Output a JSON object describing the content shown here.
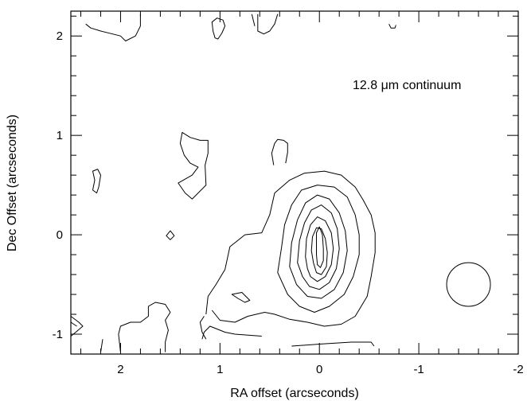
{
  "chart_data": {
    "type": "contour",
    "title": "",
    "xlabel": "RA offset (arcseconds)",
    "ylabel": "Dec Offset (arcseconds)",
    "xlim": [
      2.5,
      -2.0
    ],
    "ylim": [
      -1.2,
      2.25
    ],
    "x_reversed": true,
    "grid": false,
    "annotation": "12.8 μm continuum",
    "x_ticks": [
      2,
      1,
      0,
      -1,
      -2
    ],
    "x_tick_labels": [
      "2",
      "1",
      "0",
      "-1",
      "-2"
    ],
    "y_ticks": [
      -1,
      0,
      1,
      2
    ],
    "y_tick_labels": [
      "-1",
      "0",
      "1",
      "2"
    ],
    "x_minor_step": 0.2,
    "y_minor_step": 0.2,
    "beam": {
      "x": -1.5,
      "y": -0.5,
      "radius": 0.22
    },
    "contours": [
      {
        "name": "main-outer",
        "closed": false,
        "points": [
          [
            0.58,
            -1.02
          ],
          [
            0.85,
            -1.0
          ],
          [
            0.95,
            -0.98
          ],
          [
            1.1,
            -0.92
          ],
          [
            1.16,
            -0.98
          ],
          [
            1.18,
            -1.05
          ]
        ]
      },
      {
        "name": "main-outer",
        "closed": false,
        "points": [
          [
            1.14,
            -0.8
          ],
          [
            1.12,
            -0.62
          ],
          [
            1.04,
            -0.5
          ],
          [
            0.95,
            -0.35
          ],
          [
            0.9,
            -0.12
          ],
          [
            0.75,
            0.0
          ],
          [
            0.58,
            0.02
          ],
          [
            0.5,
            0.2
          ],
          [
            0.45,
            0.42
          ],
          [
            0.3,
            0.55
          ],
          [
            0.15,
            0.62
          ],
          [
            -0.05,
            0.64
          ],
          [
            -0.22,
            0.6
          ],
          [
            -0.36,
            0.48
          ],
          [
            -0.44,
            0.35
          ],
          [
            -0.52,
            0.2
          ],
          [
            -0.56,
            0.02
          ],
          [
            -0.56,
            -0.18
          ],
          [
            -0.52,
            -0.42
          ],
          [
            -0.48,
            -0.62
          ],
          [
            -0.36,
            -0.82
          ],
          [
            -0.22,
            -0.9
          ],
          [
            -0.05,
            -0.92
          ],
          [
            0.12,
            -0.88
          ],
          [
            0.3,
            -0.85
          ],
          [
            0.45,
            -0.8
          ],
          [
            0.55,
            -0.78
          ],
          [
            0.72,
            -0.82
          ],
          [
            0.85,
            -0.88
          ],
          [
            1.0,
            -0.86
          ],
          [
            1.08,
            -0.76
          ]
        ]
      },
      {
        "name": "contour-2",
        "closed": true,
        "points": [
          [
            0.42,
            -0.38
          ],
          [
            0.38,
            -0.12
          ],
          [
            0.35,
            0.1
          ],
          [
            0.28,
            0.3
          ],
          [
            0.18,
            0.45
          ],
          [
            0.02,
            0.5
          ],
          [
            -0.15,
            0.48
          ],
          [
            -0.28,
            0.38
          ],
          [
            -0.36,
            0.2
          ],
          [
            -0.4,
            0.0
          ],
          [
            -0.4,
            -0.2
          ],
          [
            -0.34,
            -0.42
          ],
          [
            -0.25,
            -0.6
          ],
          [
            -0.1,
            -0.72
          ],
          [
            0.05,
            -0.78
          ],
          [
            0.2,
            -0.72
          ],
          [
            0.32,
            -0.6
          ]
        ]
      },
      {
        "name": "contour-3",
        "closed": true,
        "points": [
          [
            0.3,
            -0.32
          ],
          [
            0.28,
            -0.08
          ],
          [
            0.22,
            0.15
          ],
          [
            0.14,
            0.32
          ],
          [
            0.02,
            0.4
          ],
          [
            -0.1,
            0.36
          ],
          [
            -0.2,
            0.22
          ],
          [
            -0.26,
            0.04
          ],
          [
            -0.28,
            -0.16
          ],
          [
            -0.24,
            -0.38
          ],
          [
            -0.15,
            -0.55
          ],
          [
            -0.02,
            -0.64
          ],
          [
            0.12,
            -0.62
          ],
          [
            0.23,
            -0.5
          ]
        ]
      },
      {
        "name": "contour-4",
        "closed": true,
        "points": [
          [
            0.22,
            -0.28
          ],
          [
            0.2,
            -0.06
          ],
          [
            0.15,
            0.12
          ],
          [
            0.08,
            0.25
          ],
          [
            -0.02,
            0.3
          ],
          [
            -0.12,
            0.22
          ],
          [
            -0.18,
            0.06
          ],
          [
            -0.2,
            -0.14
          ],
          [
            -0.17,
            -0.34
          ],
          [
            -0.1,
            -0.48
          ],
          [
            0.0,
            -0.55
          ],
          [
            0.1,
            -0.52
          ],
          [
            0.17,
            -0.42
          ]
        ]
      },
      {
        "name": "contour-5",
        "closed": true,
        "points": [
          [
            0.14,
            -0.22
          ],
          [
            0.13,
            -0.04
          ],
          [
            0.09,
            0.1
          ],
          [
            0.02,
            0.18
          ],
          [
            -0.06,
            0.14
          ],
          [
            -0.12,
            0.02
          ],
          [
            -0.14,
            -0.14
          ],
          [
            -0.12,
            -0.3
          ],
          [
            -0.06,
            -0.42
          ],
          [
            0.02,
            -0.47
          ],
          [
            0.09,
            -0.42
          ],
          [
            0.12,
            -0.34
          ]
        ]
      },
      {
        "name": "contour-6",
        "closed": true,
        "points": [
          [
            0.08,
            -0.16
          ],
          [
            0.07,
            -0.02
          ],
          [
            0.03,
            0.07
          ],
          [
            -0.02,
            0.06
          ],
          [
            -0.06,
            -0.04
          ],
          [
            -0.08,
            -0.18
          ],
          [
            -0.07,
            -0.32
          ],
          [
            -0.02,
            -0.4
          ],
          [
            0.03,
            -0.38
          ],
          [
            0.06,
            -0.28
          ]
        ]
      },
      {
        "name": "contour-7",
        "closed": true,
        "points": [
          [
            0.03,
            -0.12
          ],
          [
            0.03,
            0.02
          ],
          [
            0.0,
            0.08
          ],
          [
            -0.03,
            0.0
          ],
          [
            -0.04,
            -0.14
          ],
          [
            -0.04,
            -0.26
          ],
          [
            -0.01,
            -0.33
          ],
          [
            0.02,
            -0.3
          ],
          [
            0.03,
            -0.2
          ]
        ]
      },
      {
        "name": "blob-top-small",
        "closed": true,
        "points": [
          [
            1.02,
            1.97
          ],
          [
            0.98,
            2.03
          ],
          [
            0.95,
            2.1
          ],
          [
            0.97,
            2.16
          ],
          [
            1.03,
            2.18
          ],
          [
            1.08,
            2.14
          ],
          [
            1.07,
            2.05
          ],
          [
            1.05,
            1.98
          ]
        ]
      },
      {
        "name": "blob-center-top",
        "closed": false,
        "points": [
          [
            0.46,
            0.7
          ],
          [
            0.48,
            0.82
          ],
          [
            0.45,
            0.92
          ],
          [
            0.42,
            0.96
          ],
          [
            0.36,
            0.95
          ],
          [
            0.32,
            0.92
          ],
          [
            0.32,
            0.83
          ],
          [
            0.34,
            0.72
          ]
        ]
      },
      {
        "name": "blob-left",
        "closed": true,
        "points": [
          [
            2.28,
            0.45
          ],
          [
            2.26,
            0.55
          ],
          [
            2.28,
            0.64
          ],
          [
            2.23,
            0.66
          ],
          [
            2.2,
            0.6
          ],
          [
            2.22,
            0.48
          ],
          [
            2.24,
            0.42
          ]
        ]
      },
      {
        "name": "blob-diamond",
        "closed": true,
        "points": [
          [
            1.5,
            -0.05
          ],
          [
            1.46,
            -0.01
          ],
          [
            1.5,
            0.04
          ],
          [
            1.54,
            -0.01
          ]
        ]
      },
      {
        "name": "blob-center-left",
        "closed": true,
        "points": [
          [
            1.12,
            0.95
          ],
          [
            1.2,
            0.95
          ],
          [
            1.3,
            0.98
          ],
          [
            1.38,
            1.03
          ],
          [
            1.4,
            0.92
          ],
          [
            1.36,
            0.8
          ],
          [
            1.3,
            0.72
          ],
          [
            1.22,
            0.68
          ],
          [
            1.28,
            0.6
          ],
          [
            1.42,
            0.52
          ],
          [
            1.35,
            0.42
          ],
          [
            1.28,
            0.36
          ],
          [
            1.14,
            0.5
          ],
          [
            1.15,
            0.7
          ],
          [
            1.12,
            0.82
          ]
        ]
      },
      {
        "name": "blob-small-mid",
        "closed": true,
        "points": [
          [
            0.88,
            -0.6
          ],
          [
            0.78,
            -0.58
          ],
          [
            0.74,
            -0.62
          ],
          [
            0.7,
            -0.66
          ],
          [
            0.75,
            -0.68
          ],
          [
            0.82,
            -0.64
          ]
        ]
      },
      {
        "name": "top-edge-1",
        "closed": false,
        "points": [
          [
            2.35,
            2.12
          ],
          [
            2.3,
            2.08
          ],
          [
            2.2,
            2.05
          ],
          [
            2.0,
            2.0
          ],
          [
            1.95,
            1.95
          ],
          [
            1.85,
            2.0
          ],
          [
            1.8,
            2.1
          ],
          [
            1.8,
            2.22
          ]
        ]
      },
      {
        "name": "top-edge-2",
        "closed": false,
        "points": [
          [
            0.68,
            2.22
          ],
          [
            0.65,
            2.1
          ]
        ]
      },
      {
        "name": "top-edge-3",
        "closed": false,
        "points": [
          [
            0.42,
            2.22
          ],
          [
            0.45,
            2.12
          ],
          [
            0.5,
            2.05
          ],
          [
            0.56,
            2.02
          ],
          [
            0.62,
            2.05
          ],
          [
            0.62,
            2.12
          ],
          [
            0.62,
            2.22
          ]
        ]
      },
      {
        "name": "top-edge-4",
        "closed": false,
        "points": [
          [
            -0.7,
            2.12
          ],
          [
            -0.72,
            2.08
          ],
          [
            -0.76,
            2.08
          ],
          [
            -0.77,
            2.11
          ]
        ]
      },
      {
        "name": "bottom-left-1",
        "closed": false,
        "points": [
          [
            2.5,
            -0.82
          ],
          [
            2.42,
            -0.88
          ],
          [
            2.38,
            -0.92
          ],
          [
            2.45,
            -0.98
          ],
          [
            2.5,
            -1.02
          ]
        ]
      },
      {
        "name": "bottom-left-2",
        "closed": false,
        "points": [
          [
            2.5,
            -0.88
          ],
          [
            2.44,
            -0.92
          ]
        ]
      },
      {
        "name": "bottom-left-3",
        "closed": false,
        "points": [
          [
            2.0,
            -1.18
          ],
          [
            2.02,
            -1.0
          ],
          [
            2.0,
            -0.92
          ],
          [
            1.9,
            -0.88
          ],
          [
            1.8,
            -0.88
          ],
          [
            1.72,
            -0.82
          ],
          [
            1.72,
            -0.72
          ],
          [
            1.65,
            -0.68
          ],
          [
            1.55,
            -0.7
          ],
          [
            1.5,
            -0.78
          ],
          [
            1.55,
            -0.86
          ],
          [
            1.52,
            -0.96
          ],
          [
            1.55,
            -1.08
          ],
          [
            1.55,
            -1.18
          ]
        ]
      },
      {
        "name": "bottom-left-4",
        "closed": false,
        "points": [
          [
            2.2,
            -1.18
          ],
          [
            2.18,
            -1.05
          ]
        ]
      },
      {
        "name": "bottom-center",
        "closed": false,
        "points": [
          [
            0.28,
            -1.12
          ],
          [
            0.0,
            -1.1
          ],
          [
            -0.32,
            -1.08
          ],
          [
            -0.52,
            -1.08
          ],
          [
            -0.55,
            -1.12
          ]
        ]
      },
      {
        "name": "left-edge-piece",
        "closed": false,
        "points": [
          [
            1.14,
            -1.05
          ],
          [
            1.18,
            -0.98
          ],
          [
            1.2,
            -0.88
          ],
          [
            1.16,
            -0.82
          ]
        ]
      }
    ]
  }
}
